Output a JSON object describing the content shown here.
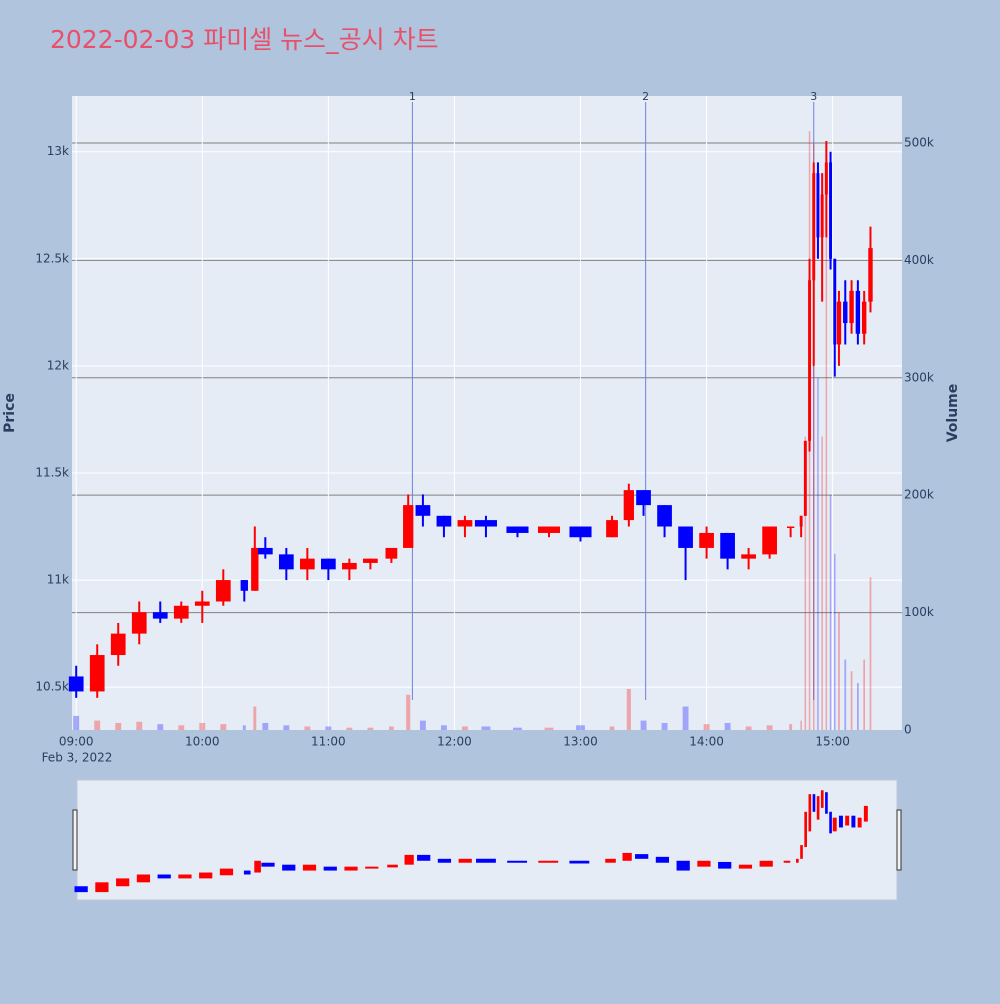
{
  "chart_data": {
    "type": "candlestick",
    "title": "2022-02-03 파미셀 뉴스_공시 차트",
    "y_label": "Price",
    "y2_label": "Volume",
    "x_date_label": "Feb 3, 2022",
    "increasing_color": "#ff0000",
    "decreasing_color": "#0000ff",
    "grid": true,
    "range_slider": true,
    "xlim": [
      "08:58",
      "15:33"
    ],
    "xticks": [
      "09:00",
      "10:00",
      "11:00",
      "12:00",
      "13:00",
      "14:00",
      "15:00"
    ],
    "ylim": [
      10300,
      13260
    ],
    "yticks": [
      {
        "value": 10500,
        "label": "10.5k"
      },
      {
        "value": 11000,
        "label": "11k"
      },
      {
        "value": 11500,
        "label": "11.5k"
      },
      {
        "value": 12000,
        "label": "12k"
      },
      {
        "value": 12500,
        "label": "12.5k"
      },
      {
        "value": 13000,
        "label": "13k"
      }
    ],
    "y2lim": [
      0,
      540000
    ],
    "y2ticks": [
      0,
      {
        "value": 100000,
        "label": "100k"
      },
      {
        "value": 200000,
        "label": "200k"
      },
      {
        "value": 300000,
        "label": "300k"
      },
      {
        "value": 400000,
        "label": "400k"
      },
      {
        "value": 500000,
        "label": "500k"
      }
    ],
    "annotations": [
      {
        "x": "11:40",
        "text": "1"
      },
      {
        "x": "13:31",
        "text": "2"
      },
      {
        "x": "14:51",
        "text": "3"
      }
    ],
    "x": [
      "09:00",
      "09:10",
      "09:20",
      "09:30",
      "09:40",
      "09:50",
      "10:00",
      "10:10",
      "10:20",
      "10:25",
      "10:30",
      "10:40",
      "10:50",
      "11:00",
      "11:10",
      "11:20",
      "11:30",
      "11:38",
      "11:45",
      "11:55",
      "12:05",
      "12:15",
      "12:30",
      "12:45",
      "13:00",
      "13:15",
      "13:23",
      "13:30",
      "13:40",
      "13:50",
      "14:00",
      "14:10",
      "14:20",
      "14:30",
      "14:40",
      "14:45",
      "14:47",
      "14:49",
      "14:51",
      "14:53",
      "14:55",
      "14:57",
      "14:59",
      "15:01",
      "15:03",
      "15:06",
      "15:09",
      "15:12",
      "15:15",
      "15:18"
    ],
    "open": [
      10550,
      10480,
      10650,
      10750,
      10850,
      10820,
      10880,
      10900,
      11000,
      10950,
      11150,
      11120,
      11050,
      11100,
      11050,
      11080,
      11100,
      11150,
      11350,
      11300,
      11250,
      11280,
      11250,
      11220,
      11250,
      11200,
      11280,
      11420,
      11350,
      11250,
      11150,
      11220,
      11100,
      11120,
      11250,
      11250,
      11300,
      11650,
      12400,
      12900,
      12600,
      12800,
      12950,
      12500,
      12100,
      12300,
      12200,
      12350,
      12150,
      12300
    ],
    "high": [
      10600,
      10700,
      10800,
      10900,
      10900,
      10900,
      10950,
      11050,
      11000,
      11250,
      11200,
      11150,
      11150,
      11100,
      11100,
      11100,
      11150,
      11400,
      11400,
      11300,
      11300,
      11300,
      11250,
      11250,
      11250,
      11300,
      11450,
      11420,
      11350,
      11250,
      11250,
      11220,
      11150,
      11250,
      11250,
      11300,
      11650,
      12500,
      12950,
      12950,
      12900,
      13050,
      13000,
      12500,
      12350,
      12400,
      12400,
      12400,
      12350,
      12650
    ],
    "low": [
      10450,
      10450,
      10600,
      10700,
      10800,
      10800,
      10800,
      10880,
      10900,
      10950,
      11100,
      11000,
      11000,
      11000,
      11000,
      11050,
      11080,
      11150,
      11250,
      11200,
      11200,
      11200,
      11200,
      11200,
      11180,
      11200,
      11250,
      11300,
      11200,
      11000,
      11100,
      11050,
      11050,
      11100,
      11200,
      11200,
      11300,
      11600,
      12000,
      12500,
      12300,
      12600,
      12450,
      11950,
      12000,
      12100,
      12150,
      12100,
      12100,
      12250
    ],
    "close": [
      10480,
      10650,
      10750,
      10850,
      10820,
      10880,
      10900,
      11000,
      10950,
      11150,
      11120,
      11050,
      11100,
      11050,
      11080,
      11100,
      11150,
      11350,
      11300,
      11250,
      11280,
      11250,
      11220,
      11250,
      11200,
      11280,
      11420,
      11350,
      11250,
      11150,
      11220,
      11100,
      11120,
      11250,
      11250,
      11300,
      11650,
      12400,
      12900,
      12600,
      12800,
      12950,
      12500,
      12100,
      12300,
      12200,
      12350,
      12150,
      12300,
      12550
    ],
    "volume": [
      12000,
      8000,
      6000,
      7000,
      5000,
      4000,
      6000,
      5000,
      4000,
      20000,
      6000,
      4000,
      3000,
      3000,
      2000,
      2000,
      3000,
      30000,
      8000,
      4000,
      3000,
      3000,
      2000,
      2000,
      4000,
      3000,
      35000,
      8000,
      6000,
      20000,
      5000,
      6000,
      3000,
      4000,
      5000,
      8000,
      250000,
      510000,
      500000,
      300000,
      250000,
      430000,
      200000,
      150000,
      100000,
      60000,
      50000,
      40000,
      60000,
      130000
    ]
  }
}
